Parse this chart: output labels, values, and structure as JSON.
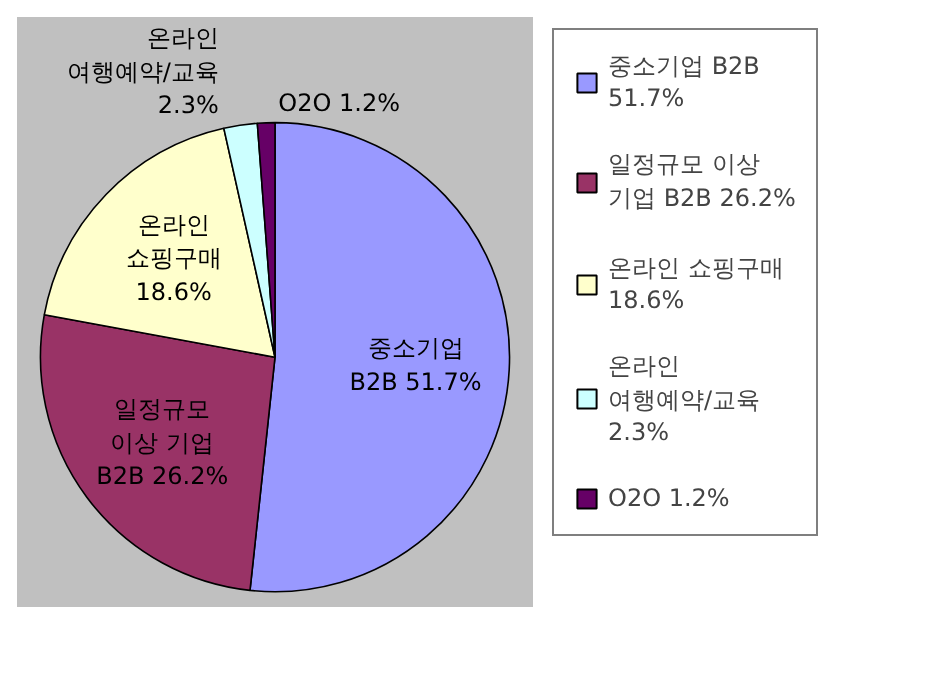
{
  "chart_data": {
    "type": "pie",
    "categories": [
      "중소기업 B2B",
      "일정규모 이상 기업 B2B",
      "온라인 쇼핑구매",
      "온라인 여행예약/교육",
      "O2O"
    ],
    "values": [
      51.7,
      26.2,
      18.6,
      2.3,
      1.2
    ],
    "value_labels": [
      "51.7%",
      "26.2%",
      "18.6%",
      "2.3%",
      "1.2%"
    ],
    "colors": [
      "#9999ff",
      "#993366",
      "#ffffcc",
      "#ccffff",
      "#660066"
    ],
    "legend": "right"
  }
}
